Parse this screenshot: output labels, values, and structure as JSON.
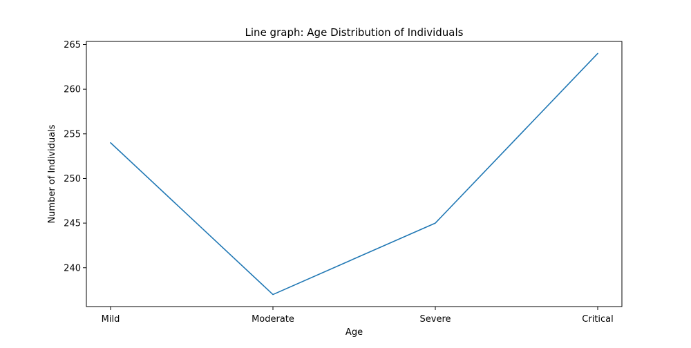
{
  "chart_data": {
    "type": "line",
    "title": "Line graph: Age Distribution of Individuals",
    "xlabel": "Age",
    "ylabel": "Number of Individuals",
    "categories": [
      "Mild",
      "Moderate",
      "Severe",
      "Critical"
    ],
    "series": [
      {
        "values": [
          254,
          237,
          245,
          264
        ],
        "color": "#1f77b4"
      }
    ],
    "ylim": [
      235.65,
      265.35
    ],
    "yticks": [
      240,
      245,
      250,
      255,
      260,
      265
    ],
    "grid": false,
    "legend": "none"
  }
}
